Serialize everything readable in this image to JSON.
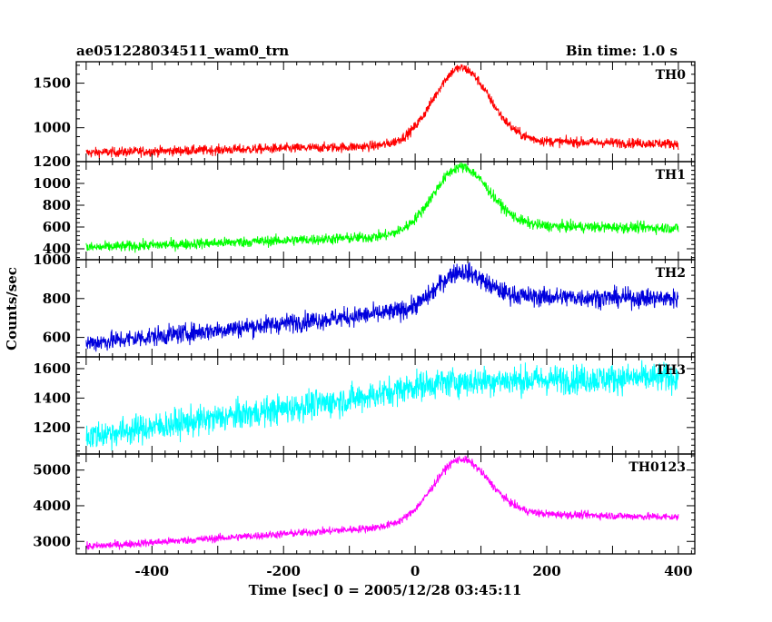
{
  "header": {
    "title": "ae051228034511_wam0_trn",
    "bin_time": "Bin time: 1.0 s"
  },
  "axes": {
    "xlabel": "Time [sec] 0 = 2005/12/28 03:45:11",
    "ylabel": "Counts/sec"
  },
  "chart_data": {
    "type": "line",
    "title": "ae051228034511_wam0_trn",
    "xlabel": "Time [sec] 0 = 2005/12/28 03:45:11",
    "ylabel": "Counts/sec",
    "xlim": [
      -515,
      425
    ],
    "x_ticks": [
      -400,
      -200,
      0,
      200,
      400
    ],
    "x_range": [
      -500,
      400
    ],
    "bin_time_s": 1.0,
    "panels": [
      {
        "name": "TH0",
        "color": "#ff0000",
        "ylim": [
          620,
          1740
        ],
        "y_ticks": [
          1000,
          1500
        ],
        "baseline_start": 720,
        "baseline_pre_burst": 800,
        "peak_time": 70,
        "peak_value": 1670,
        "burst_width": 42,
        "post_level": 850,
        "post_level_end": 820,
        "noise": 28
      },
      {
        "name": "TH1",
        "color": "#00ff00",
        "ylim": [
          300,
          1200
        ],
        "y_ticks": [
          400,
          600,
          800,
          1000,
          1200
        ],
        "baseline_start": 410,
        "baseline_pre_burst": 520,
        "peak_time": 70,
        "peak_value": 1150,
        "burst_width": 42,
        "post_level": 610,
        "post_level_end": 590,
        "noise": 25
      },
      {
        "name": "TH2",
        "color": "#0000dd",
        "ylim": [
          500,
          1000
        ],
        "y_ticks": [
          600,
          800,
          1000
        ],
        "baseline_start": 570,
        "baseline_pre_burst": 740,
        "peak_time": 70,
        "peak_value": 940,
        "burst_width": 35,
        "post_level": 810,
        "post_level_end": 800,
        "noise": 25
      },
      {
        "name": "TH3",
        "color": "#00ffff",
        "ylim": [
          1020,
          1680
        ],
        "y_ticks": [
          1200,
          1400,
          1600
        ],
        "baseline_start": 1140,
        "baseline_pre_burst": 1450,
        "peak_time": 70,
        "peak_value": 1510,
        "burst_width": 60,
        "post_level": 1520,
        "post_level_end": 1540,
        "noise": 50
      },
      {
        "name": "TH0123",
        "color": "#ff00ff",
        "ylim": [
          2650,
          5450
        ],
        "y_ticks": [
          3000,
          4000,
          5000
        ],
        "baseline_start": 2850,
        "baseline_pre_burst": 3450,
        "peak_time": 70,
        "peak_value": 5300,
        "burst_width": 42,
        "post_level": 3780,
        "post_level_end": 3680,
        "noise": 55
      }
    ]
  }
}
